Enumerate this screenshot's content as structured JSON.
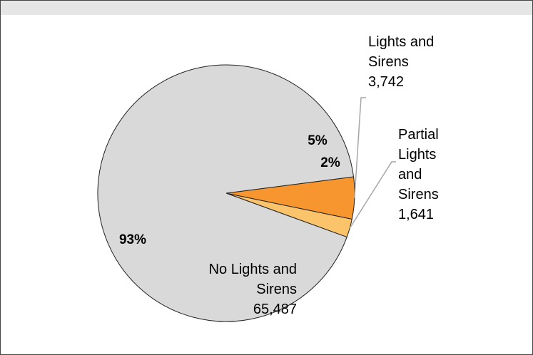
{
  "chart_data": {
    "type": "pie",
    "slices": [
      {
        "label_lines": [
          "Lights and",
          "Sirens"
        ],
        "count": "3,742",
        "value": 3742,
        "percent": "5%",
        "color": "#f7962f"
      },
      {
        "label_lines": [
          "Partial",
          "Lights",
          "and",
          "Sirens"
        ],
        "count": "1,641",
        "value": 1641,
        "percent": "2%",
        "color": "#fcc46a"
      },
      {
        "label_lines": [
          "No Lights and",
          "Sirens"
        ],
        "count": "65,487",
        "value": 65487,
        "percent": "93%",
        "color": "#d9d9d9"
      }
    ],
    "slice_border": "#222222",
    "leader_line_color": "#a6a6a6",
    "title": ""
  }
}
